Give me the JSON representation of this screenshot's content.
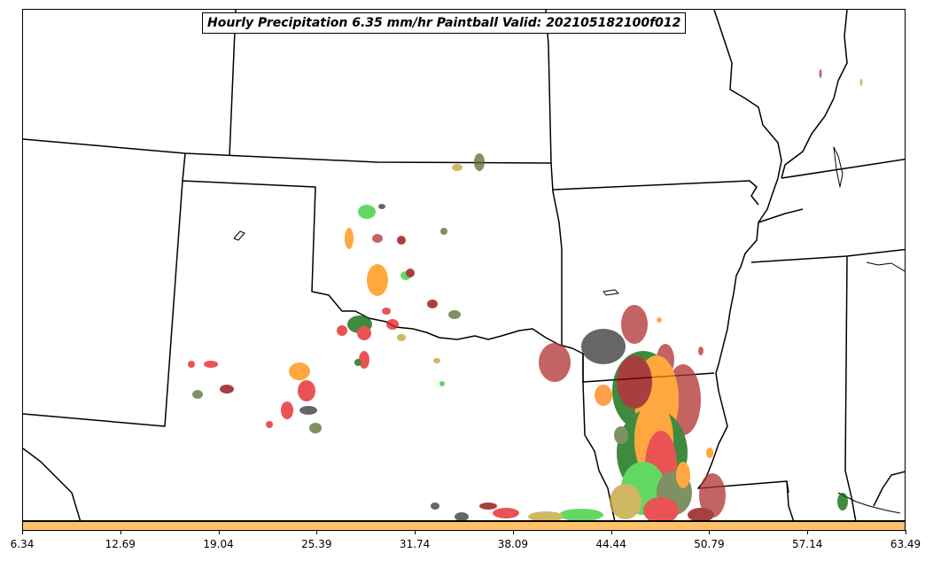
{
  "title": "Hourly Precipitation 6.35 mm/hr Paintball Valid: 202105182100f012",
  "colorbar": {
    "color": "#ffc266",
    "ticks": [
      "6.34",
      "12.69",
      "19.04",
      "25.39",
      "31.74",
      "38.09",
      "44.44",
      "50.79",
      "57.14",
      "63.49"
    ]
  },
  "colors": {
    "background": "#ffffff",
    "boundaries": "#000000",
    "member_colors": [
      "#2ecc2e",
      "#ff7f0e",
      "#e41a1c",
      "#8b0000",
      "#006400",
      "#556b2f",
      "#bfa030",
      "#333333",
      "#b03030",
      "#ff8c00"
    ]
  }
}
